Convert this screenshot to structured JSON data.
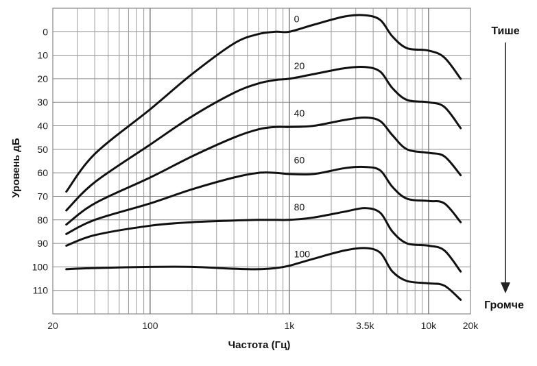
{
  "chart_data": {
    "type": "line",
    "title": "",
    "xlabel": "Частота (Гц)",
    "ylabel": "Уровень дБ",
    "xscale": "log",
    "xlim": [
      20,
      20000
    ],
    "ylim": [
      -10,
      120
    ],
    "y_inverted": true,
    "grid": true,
    "x_tick_labels": [
      {
        "value": 20,
        "label": "20",
        "highlight": false
      },
      {
        "value": 100,
        "label": "100",
        "highlight": false
      },
      {
        "value": 1000,
        "label": "1k",
        "highlight": false
      },
      {
        "value": 3500,
        "label": "3.5k",
        "highlight": true
      },
      {
        "value": 10000,
        "label": "10k",
        "highlight": false
      },
      {
        "value": 20000,
        "label": "20k",
        "highlight": false
      }
    ],
    "y_ticks": [
      0,
      10,
      20,
      30,
      40,
      50,
      60,
      70,
      80,
      90,
      100,
      110
    ],
    "series": [
      {
        "name": "0",
        "points": [
          [
            25,
            68
          ],
          [
            40,
            52
          ],
          [
            100,
            33
          ],
          [
            200,
            18
          ],
          [
            400,
            5
          ],
          [
            600,
            1
          ],
          [
            800,
            0
          ],
          [
            1000,
            0
          ],
          [
            1500,
            -3
          ],
          [
            2500,
            -6.5
          ],
          [
            3500,
            -7
          ],
          [
            4500,
            -5
          ],
          [
            5500,
            2
          ],
          [
            7000,
            7
          ],
          [
            10000,
            8
          ],
          [
            13000,
            11
          ],
          [
            17000,
            20
          ]
        ]
      },
      {
        "name": "20",
        "points": [
          [
            25,
            76
          ],
          [
            40,
            64
          ],
          [
            100,
            48
          ],
          [
            200,
            36
          ],
          [
            400,
            26
          ],
          [
            600,
            22
          ],
          [
            800,
            20.5
          ],
          [
            1000,
            20
          ],
          [
            1500,
            18
          ],
          [
            2500,
            15.5
          ],
          [
            3500,
            15
          ],
          [
            4500,
            17
          ],
          [
            5500,
            24
          ],
          [
            7000,
            29
          ],
          [
            10000,
            30
          ],
          [
            13000,
            32
          ],
          [
            17000,
            41
          ]
        ]
      },
      {
        "name": "40",
        "points": [
          [
            25,
            82
          ],
          [
            40,
            73
          ],
          [
            100,
            62
          ],
          [
            200,
            53
          ],
          [
            400,
            45
          ],
          [
            600,
            41.5
          ],
          [
            800,
            40.5
          ],
          [
            1000,
            40.5
          ],
          [
            1500,
            40
          ],
          [
            2500,
            37.5
          ],
          [
            3500,
            36.5
          ],
          [
            4500,
            38
          ],
          [
            5500,
            44
          ],
          [
            7000,
            50
          ],
          [
            10000,
            51.5
          ],
          [
            13000,
            53
          ],
          [
            17000,
            61
          ]
        ]
      },
      {
        "name": "60",
        "points": [
          [
            25,
            86
          ],
          [
            40,
            80
          ],
          [
            100,
            73
          ],
          [
            200,
            67
          ],
          [
            400,
            62
          ],
          [
            600,
            60
          ],
          [
            800,
            60
          ],
          [
            1000,
            60.5
          ],
          [
            1500,
            60.5
          ],
          [
            2500,
            58
          ],
          [
            3500,
            57.5
          ],
          [
            4500,
            59
          ],
          [
            5500,
            66
          ],
          [
            7000,
            71
          ],
          [
            10000,
            72
          ],
          [
            13000,
            73
          ],
          [
            17000,
            81
          ]
        ]
      },
      {
        "name": "80",
        "points": [
          [
            25,
            91
          ],
          [
            40,
            86.5
          ],
          [
            100,
            82.5
          ],
          [
            200,
            81
          ],
          [
            400,
            80.3
          ],
          [
            600,
            80
          ],
          [
            800,
            80
          ],
          [
            1000,
            80
          ],
          [
            1500,
            79
          ],
          [
            2500,
            76.5
          ],
          [
            3500,
            75
          ],
          [
            4500,
            77
          ],
          [
            5500,
            85
          ],
          [
            7000,
            90
          ],
          [
            10000,
            91
          ],
          [
            13000,
            93
          ],
          [
            17000,
            102
          ]
        ]
      },
      {
        "name": "100",
        "points": [
          [
            25,
            101
          ],
          [
            40,
            100.5
          ],
          [
            100,
            100
          ],
          [
            200,
            100
          ],
          [
            400,
            100.8
          ],
          [
            600,
            101
          ],
          [
            800,
            100.5
          ],
          [
            1000,
            99.5
          ],
          [
            1500,
            96.5
          ],
          [
            2500,
            93
          ],
          [
            3500,
            92
          ],
          [
            4500,
            94
          ],
          [
            5500,
            102
          ],
          [
            7000,
            106
          ],
          [
            10000,
            107
          ],
          [
            13000,
            108
          ],
          [
            17000,
            114
          ]
        ]
      }
    ],
    "curve_labels": [
      {
        "series": "0",
        "x": 1080,
        "y": -4
      },
      {
        "series": "20",
        "x": 1080,
        "y": 16
      },
      {
        "series": "40",
        "x": 1080,
        "y": 36
      },
      {
        "series": "60",
        "x": 1080,
        "y": 56
      },
      {
        "series": "80",
        "x": 1080,
        "y": 76
      },
      {
        "series": "100",
        "x": 1080,
        "y": 96
      }
    ],
    "annotations": {
      "top": "Тише",
      "bottom": "Громче"
    }
  }
}
